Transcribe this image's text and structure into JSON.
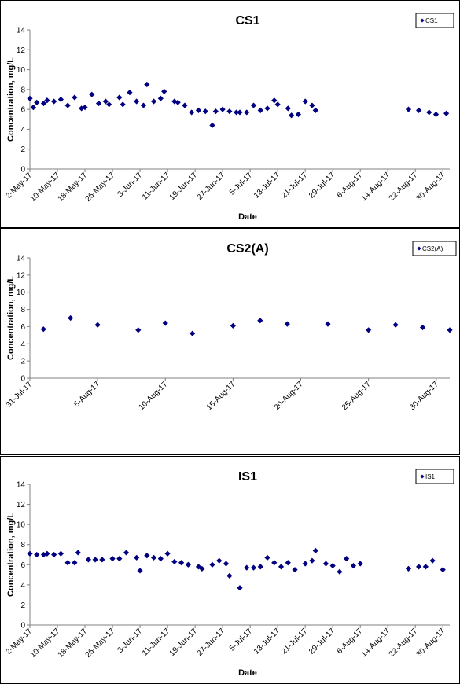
{
  "colors": {
    "marker": "#000080",
    "axis": "#808080",
    "text": "#000000",
    "frame": "#000000",
    "background": "#ffffff"
  },
  "chart_data": [
    {
      "type": "scatter",
      "title": "CS1",
      "xlabel": "Date",
      "ylabel": "Concentration, mg/L",
      "ylim": [
        0,
        14
      ],
      "yticks": [
        0,
        2,
        4,
        6,
        8,
        10,
        12,
        14
      ],
      "xlim": [
        "2017-05-02",
        "2017-09-01"
      ],
      "xticks": [
        "2017-05-02",
        "2017-05-10",
        "2017-05-18",
        "2017-05-26",
        "2017-06-03",
        "2017-06-11",
        "2017-06-19",
        "2017-06-27",
        "2017-07-05",
        "2017-07-13",
        "2017-07-21",
        "2017-07-29",
        "2017-08-06",
        "2017-08-14",
        "2017-08-22",
        "2017-08-30"
      ],
      "xtick_labels": [
        "2-May-17",
        "10-May-17",
        "18-May-17",
        "26-May-17",
        "3-Jun-17",
        "11-Jun-17",
        "19-Jun-17",
        "27-Jun-17",
        "5-Jul-17",
        "13-Jul-17",
        "21-Jul-17",
        "29-Jul-17",
        "6-Aug-17",
        "14-Aug-17",
        "22-Aug-17",
        "30-Aug-17"
      ],
      "grid": false,
      "legend": {
        "placement": "top-right"
      },
      "series": [
        {
          "name": "CS1",
          "points": [
            [
              "2017-05-02",
              7.1
            ],
            [
              "2017-05-03",
              6.2
            ],
            [
              "2017-05-04",
              6.7
            ],
            [
              "2017-05-06",
              6.6
            ],
            [
              "2017-05-07",
              6.9
            ],
            [
              "2017-05-09",
              6.8
            ],
            [
              "2017-05-11",
              7.0
            ],
            [
              "2017-05-13",
              6.4
            ],
            [
              "2017-05-15",
              7.2
            ],
            [
              "2017-05-17",
              6.1
            ],
            [
              "2017-05-18",
              6.2
            ],
            [
              "2017-05-20",
              7.5
            ],
            [
              "2017-05-22",
              6.6
            ],
            [
              "2017-05-24",
              6.8
            ],
            [
              "2017-05-25",
              6.5
            ],
            [
              "2017-05-28",
              7.2
            ],
            [
              "2017-05-29",
              6.5
            ],
            [
              "2017-05-31",
              7.7
            ],
            [
              "2017-06-02",
              6.8
            ],
            [
              "2017-06-04",
              6.4
            ],
            [
              "2017-06-05",
              8.5
            ],
            [
              "2017-06-07",
              6.8
            ],
            [
              "2017-06-09",
              7.1
            ],
            [
              "2017-06-10",
              7.8
            ],
            [
              "2017-06-13",
              6.8
            ],
            [
              "2017-06-14",
              6.7
            ],
            [
              "2017-06-16",
              6.4
            ],
            [
              "2017-06-18",
              5.7
            ],
            [
              "2017-06-20",
              5.9
            ],
            [
              "2017-06-22",
              5.8
            ],
            [
              "2017-06-24",
              4.4
            ],
            [
              "2017-06-25",
              5.8
            ],
            [
              "2017-06-27",
              6.0
            ],
            [
              "2017-06-29",
              5.8
            ],
            [
              "2017-07-01",
              5.7
            ],
            [
              "2017-07-02",
              5.7
            ],
            [
              "2017-07-04",
              5.7
            ],
            [
              "2017-07-06",
              6.4
            ],
            [
              "2017-07-08",
              5.9
            ],
            [
              "2017-07-10",
              6.1
            ],
            [
              "2017-07-12",
              6.9
            ],
            [
              "2017-07-13",
              6.5
            ],
            [
              "2017-07-16",
              6.1
            ],
            [
              "2017-07-17",
              5.4
            ],
            [
              "2017-07-19",
              5.5
            ],
            [
              "2017-07-21",
              6.8
            ],
            [
              "2017-07-23",
              6.4
            ],
            [
              "2017-07-24",
              5.9
            ],
            [
              "2017-08-20",
              6.0
            ],
            [
              "2017-08-23",
              5.9
            ],
            [
              "2017-08-26",
              5.7
            ],
            [
              "2017-08-28",
              5.5
            ],
            [
              "2017-08-31",
              5.6
            ]
          ]
        }
      ]
    },
    {
      "type": "scatter",
      "title": "CS2(A)",
      "xlabel": "Date",
      "ylabel": "Concentration, mg/L",
      "ylim": [
        0,
        14
      ],
      "yticks": [
        0,
        2,
        4,
        6,
        8,
        10,
        12,
        14
      ],
      "xlim": [
        "2017-07-31",
        "2017-08-31"
      ],
      "xticks": [
        "2017-07-31",
        "2017-08-05",
        "2017-08-10",
        "2017-08-15",
        "2017-08-20",
        "2017-08-25",
        "2017-08-30"
      ],
      "xtick_labels": [
        "31-Jul-17",
        "5-Aug-17",
        "10-Aug-17",
        "15-Aug-17",
        "20-Aug-17",
        "25-Aug-17",
        "30-Aug-17"
      ],
      "grid": false,
      "legend": {
        "placement": "top-right"
      },
      "series": [
        {
          "name": "CS2(A)",
          "points": [
            [
              "2017-08-01",
              5.7
            ],
            [
              "2017-08-03",
              7.0
            ],
            [
              "2017-08-05",
              6.2
            ],
            [
              "2017-08-08",
              5.6
            ],
            [
              "2017-08-10",
              6.4
            ],
            [
              "2017-08-12",
              5.2
            ],
            [
              "2017-08-15",
              6.1
            ],
            [
              "2017-08-17",
              6.7
            ],
            [
              "2017-08-19",
              6.3
            ],
            [
              "2017-08-22",
              6.3
            ],
            [
              "2017-08-25",
              5.6
            ],
            [
              "2017-08-27",
              6.2
            ],
            [
              "2017-08-29",
              5.9
            ],
            [
              "2017-08-31",
              5.6
            ]
          ]
        }
      ]
    },
    {
      "type": "scatter",
      "title": "IS1",
      "xlabel": "Date",
      "ylabel": "Concentration, mg/L",
      "ylim": [
        0,
        14
      ],
      "yticks": [
        0,
        2,
        4,
        6,
        8,
        10,
        12,
        14
      ],
      "xlim": [
        "2017-05-02",
        "2017-09-01"
      ],
      "xticks": [
        "2017-05-02",
        "2017-05-10",
        "2017-05-18",
        "2017-05-26",
        "2017-06-03",
        "2017-06-11",
        "2017-06-19",
        "2017-06-27",
        "2017-07-05",
        "2017-07-13",
        "2017-07-21",
        "2017-07-29",
        "2017-08-06",
        "2017-08-14",
        "2017-08-22",
        "2017-08-30"
      ],
      "xtick_labels": [
        "2-May-17",
        "10-May-17",
        "18-May-17",
        "26-May-17",
        "3-Jun-17",
        "11-Jun-17",
        "19-Jun-17",
        "27-Jun-17",
        "5-Jul-17",
        "13-Jul-17",
        "21-Jul-17",
        "29-Jul-17",
        "6-Aug-17",
        "14-Aug-17",
        "22-Aug-17",
        "30-Aug-17"
      ],
      "grid": false,
      "legend": {
        "placement": "top-right"
      },
      "series": [
        {
          "name": "IS1",
          "points": [
            [
              "2017-05-02",
              7.1
            ],
            [
              "2017-05-04",
              7.0
            ],
            [
              "2017-05-06",
              7.0
            ],
            [
              "2017-05-07",
              7.1
            ],
            [
              "2017-05-09",
              7.0
            ],
            [
              "2017-05-11",
              7.1
            ],
            [
              "2017-05-13",
              6.2
            ],
            [
              "2017-05-15",
              6.2
            ],
            [
              "2017-05-16",
              7.2
            ],
            [
              "2017-05-19",
              6.5
            ],
            [
              "2017-05-21",
              6.5
            ],
            [
              "2017-05-23",
              6.5
            ],
            [
              "2017-05-26",
              6.6
            ],
            [
              "2017-05-28",
              6.6
            ],
            [
              "2017-05-30",
              7.2
            ],
            [
              "2017-06-02",
              6.7
            ],
            [
              "2017-06-03",
              5.4
            ],
            [
              "2017-06-05",
              6.9
            ],
            [
              "2017-06-07",
              6.7
            ],
            [
              "2017-06-09",
              6.6
            ],
            [
              "2017-06-11",
              7.1
            ],
            [
              "2017-06-13",
              6.3
            ],
            [
              "2017-06-15",
              6.2
            ],
            [
              "2017-06-17",
              6.0
            ],
            [
              "2017-06-20",
              5.8
            ],
            [
              "2017-06-21",
              5.6
            ],
            [
              "2017-06-24",
              6.0
            ],
            [
              "2017-06-26",
              6.4
            ],
            [
              "2017-06-28",
              6.1
            ],
            [
              "2017-06-29",
              4.9
            ],
            [
              "2017-07-02",
              3.7
            ],
            [
              "2017-07-04",
              5.7
            ],
            [
              "2017-07-06",
              5.7
            ],
            [
              "2017-07-08",
              5.8
            ],
            [
              "2017-07-10",
              6.7
            ],
            [
              "2017-07-12",
              6.2
            ],
            [
              "2017-07-14",
              5.8
            ],
            [
              "2017-07-16",
              6.2
            ],
            [
              "2017-07-18",
              5.5
            ],
            [
              "2017-07-21",
              6.1
            ],
            [
              "2017-07-23",
              6.4
            ],
            [
              "2017-07-24",
              7.4
            ],
            [
              "2017-07-27",
              6.1
            ],
            [
              "2017-07-29",
              5.9
            ],
            [
              "2017-07-31",
              5.3
            ],
            [
              "2017-08-02",
              6.6
            ],
            [
              "2017-08-04",
              5.9
            ],
            [
              "2017-08-06",
              6.1
            ],
            [
              "2017-08-20",
              5.6
            ],
            [
              "2017-08-23",
              5.8
            ],
            [
              "2017-08-25",
              5.8
            ],
            [
              "2017-08-27",
              6.4
            ],
            [
              "2017-08-30",
              5.5
            ]
          ]
        }
      ]
    }
  ]
}
